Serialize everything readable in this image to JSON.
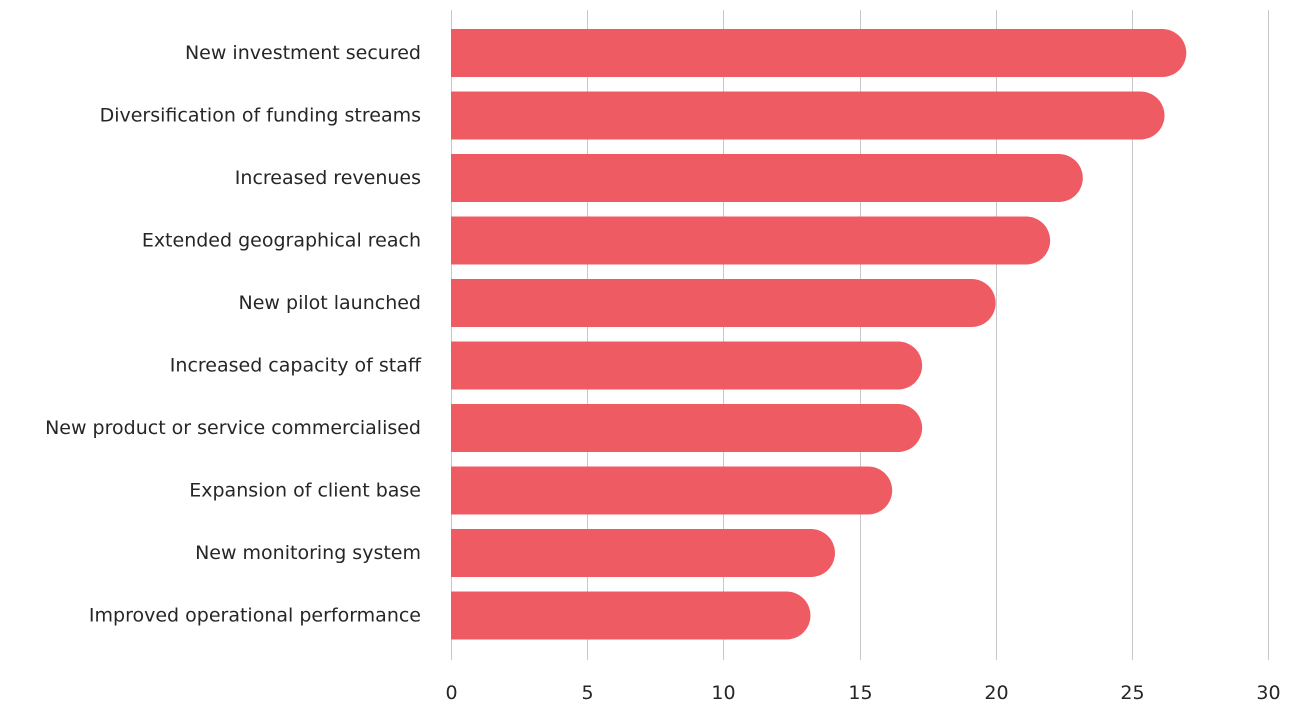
{
  "chart_data": {
    "type": "bar",
    "orientation": "horizontal",
    "categories": [
      "New investment secured",
      "Diversification of funding streams",
      "Increased revenues",
      "Extended geographical reach",
      "New pilot launched",
      "Increased capacity of staff",
      "New product or service commercialised",
      "Expansion of client base",
      "New monitoring system",
      "Improved operational performance"
    ],
    "values": [
      27,
      26.2,
      23.2,
      22,
      20,
      17.3,
      17.3,
      16.2,
      14.1,
      13.2
    ],
    "xlim": [
      0,
      30
    ],
    "xticks": [
      0,
      5,
      10,
      15,
      20,
      25,
      30
    ],
    "xtick_labels": [
      "0",
      "5",
      "10",
      "15",
      "20",
      "25",
      "30"
    ],
    "grid": "vertical",
    "bar_color": "#ef5b63",
    "title": "",
    "xlabel": "",
    "ylabel": ""
  }
}
